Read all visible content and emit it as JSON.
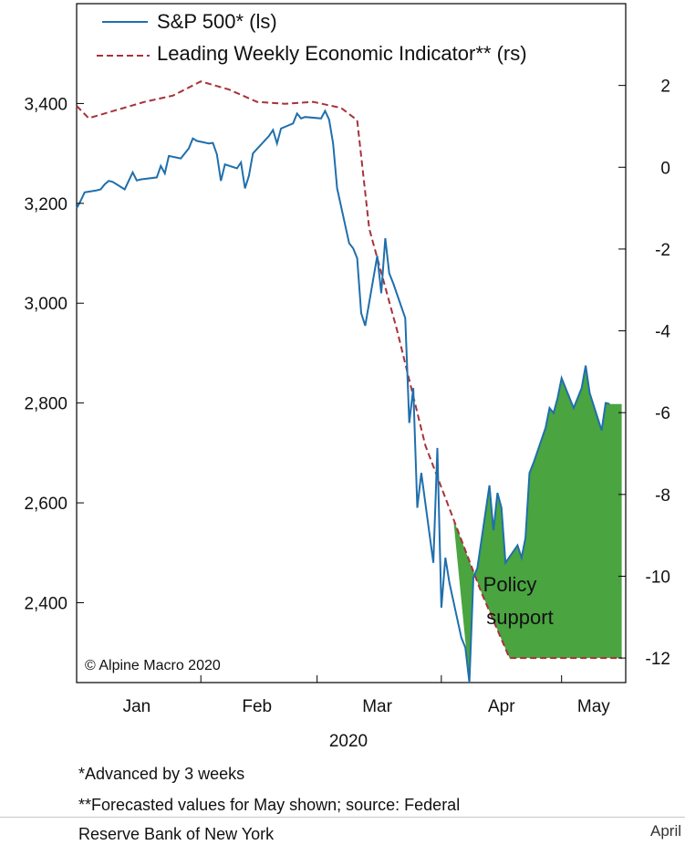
{
  "chart_data": {
    "type": "line",
    "xlabel": "2020",
    "x_ticks": [
      "Jan",
      "Feb",
      "Mar",
      "Apr",
      "May"
    ],
    "left_axis": {
      "ticks": [
        "2,400",
        "2,600",
        "2,800",
        "3,000",
        "3,200",
        "3,400"
      ],
      "ylim": [
        2240,
        3600
      ]
    },
    "right_axis": {
      "ticks": [
        "-12",
        "-10",
        "-8",
        "-6",
        "-4",
        "-2",
        "0",
        "2"
      ],
      "ylim": [
        -12.6,
        4.0
      ]
    },
    "series": [
      {
        "name": "S&P 500* (ls)",
        "axis": "left",
        "color": "#1f6fad",
        "style": "solid",
        "points": [
          [
            "01-01",
            3190
          ],
          [
            "01-02",
            3205
          ],
          [
            "01-03",
            3222
          ],
          [
            "01-06",
            3226
          ],
          [
            "01-07",
            3228
          ],
          [
            "01-08",
            3238
          ],
          [
            "01-09",
            3245
          ],
          [
            "01-10",
            3243
          ],
          [
            "01-13",
            3228
          ],
          [
            "01-14",
            3245
          ],
          [
            "01-15",
            3262
          ],
          [
            "01-16",
            3246
          ],
          [
            "01-17",
            3248
          ],
          [
            "01-21",
            3252
          ],
          [
            "01-22",
            3275
          ],
          [
            "01-23",
            3260
          ],
          [
            "01-24",
            3295
          ],
          [
            "01-27",
            3290
          ],
          [
            "01-28",
            3300
          ],
          [
            "01-29",
            3310
          ],
          [
            "01-30",
            3330
          ],
          [
            "01-31",
            3325
          ],
          [
            "02-03",
            3320
          ],
          [
            "02-04",
            3321
          ],
          [
            "02-05",
            3298
          ],
          [
            "02-06",
            3245
          ],
          [
            "02-07",
            3278
          ],
          [
            "02-10",
            3270
          ],
          [
            "02-11",
            3282
          ],
          [
            "02-12",
            3230
          ],
          [
            "02-13",
            3255
          ],
          [
            "02-14",
            3300
          ],
          [
            "02-18",
            3335
          ],
          [
            "02-19",
            3347
          ],
          [
            "02-20",
            3320
          ],
          [
            "02-21",
            3350
          ],
          [
            "02-24",
            3360
          ],
          [
            "02-25",
            3380
          ],
          [
            "02-26",
            3370
          ],
          [
            "02-27",
            3373
          ],
          [
            "03-02",
            3370
          ],
          [
            "03-03",
            3385
          ],
          [
            "03-04",
            3368
          ],
          [
            "03-05",
            3320
          ],
          [
            "03-06",
            3230
          ],
          [
            "03-09",
            3120
          ],
          [
            "03-10",
            3110
          ],
          [
            "03-11",
            3090
          ],
          [
            "03-12",
            2980
          ],
          [
            "03-13",
            2955
          ],
          [
            "03-16",
            3095
          ],
          [
            "03-17",
            3020
          ],
          [
            "03-18",
            3130
          ],
          [
            "03-19",
            3060
          ],
          [
            "03-20",
            3040
          ],
          [
            "03-23",
            2970
          ],
          [
            "03-24",
            2760
          ],
          [
            "03-25",
            2830
          ],
          [
            "03-26",
            2590
          ],
          [
            "03-27",
            2660
          ],
          [
            "03-30",
            2480
          ],
          [
            "03-31",
            2710
          ],
          [
            "04-01",
            2390
          ],
          [
            "04-02",
            2490
          ],
          [
            "04-03",
            2440
          ],
          [
            "04-06",
            2330
          ],
          [
            "04-07",
            2310
          ],
          [
            "04-08",
            2240
          ],
          [
            "04-09",
            2450
          ],
          [
            "04-10",
            2470
          ],
          [
            "04-13",
            2635
          ],
          [
            "04-14",
            2545
          ],
          [
            "04-15",
            2620
          ],
          [
            "04-16",
            2590
          ],
          [
            "04-17",
            2480
          ],
          [
            "04-20",
            2515
          ],
          [
            "04-21",
            2490
          ],
          [
            "04-22",
            2530
          ],
          [
            "04-23",
            2660
          ],
          [
            "04-24",
            2680
          ],
          [
            "04-27",
            2750
          ],
          [
            "04-28",
            2790
          ],
          [
            "04-29",
            2780
          ],
          [
            "04-30",
            2810
          ],
          [
            "05-01",
            2850
          ],
          [
            "05-04",
            2790
          ],
          [
            "05-05",
            2810
          ],
          [
            "05-06",
            2830
          ],
          [
            "05-07",
            2875
          ],
          [
            "05-08",
            2820
          ],
          [
            "05-11",
            2745
          ],
          [
            "05-12",
            2800
          ],
          [
            "05-13",
            2798
          ]
        ]
      },
      {
        "name": "Leading Weekly Economic Indicator** (rs)",
        "axis": "right",
        "color": "#a8323a",
        "style": "dashed",
        "points": [
          [
            "01-01",
            1.5
          ],
          [
            "01-04",
            1.2
          ],
          [
            "01-11",
            1.4
          ],
          [
            "01-18",
            1.6
          ],
          [
            "01-25",
            1.75
          ],
          [
            "02-01",
            2.1
          ],
          [
            "02-08",
            1.9
          ],
          [
            "02-15",
            1.6
          ],
          [
            "02-22",
            1.55
          ],
          [
            "02-29",
            1.6
          ],
          [
            "03-07",
            1.45
          ],
          [
            "03-11",
            1.15
          ],
          [
            "03-14",
            -1.5
          ],
          [
            "03-21",
            -4.0
          ],
          [
            "03-28",
            -6.8
          ],
          [
            "04-04",
            -8.6
          ],
          [
            "04-11",
            -10.4
          ],
          [
            "04-18",
            -12.0
          ],
          [
            "04-25",
            -12.0
          ],
          [
            "05-02",
            -12.0
          ],
          [
            "05-09",
            -12.0
          ],
          [
            "05-16",
            -12.0
          ]
        ]
      }
    ],
    "annotations": {
      "shaded_region": "Policy support",
      "copyright": "© Alpine Macro 2020"
    },
    "legend": "top-left"
  },
  "notes": [
    "*Advanced by 3 weeks",
    "**Forecasted values for May shown; source: Federal",
    "Reserve Bank of New York"
  ],
  "cropped_tag": "April",
  "colors": {
    "shade": "#4aa440"
  }
}
